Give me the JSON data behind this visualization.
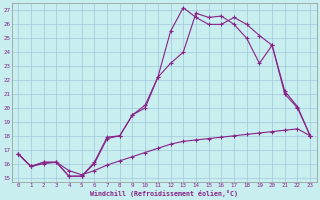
{
  "bg_color": "#c8eef0",
  "grid_color": "#a0c8d8",
  "line_color": "#882288",
  "xlabel": "Windchill (Refroidissement éolien,°C)",
  "xmin": -0.5,
  "xmax": 23.5,
  "ymin": 14.7,
  "ymax": 27.5,
  "line1": {
    "x": [
      0,
      1,
      2,
      3,
      4,
      5,
      6,
      7,
      8,
      9,
      10,
      11,
      12,
      13,
      14,
      15,
      16,
      17,
      18,
      19,
      20,
      21,
      22,
      23
    ],
    "y": [
      16.7,
      15.8,
      16.1,
      16.1,
      15.1,
      15.1,
      16.1,
      17.9,
      18.0,
      19.5,
      20.0,
      22.2,
      25.5,
      27.2,
      26.5,
      26.0,
      26.0,
      26.5,
      26.0,
      25.2,
      24.5,
      21.0,
      20.0,
      18.0
    ]
  },
  "line2": {
    "x": [
      0,
      1,
      2,
      3,
      4,
      5,
      6,
      7,
      8,
      9,
      10,
      11,
      12,
      13,
      14,
      15,
      16,
      17,
      18,
      19,
      20,
      21,
      22,
      23
    ],
    "y": [
      16.7,
      15.8,
      16.1,
      16.1,
      15.1,
      15.1,
      16.0,
      17.8,
      18.0,
      19.5,
      20.2,
      22.2,
      23.2,
      24.0,
      26.8,
      26.5,
      26.6,
      26.0,
      25.0,
      23.2,
      24.5,
      21.2,
      20.1,
      18.0
    ]
  },
  "line3": {
    "x": [
      0,
      1,
      2,
      3,
      4,
      5,
      6,
      7,
      8,
      9,
      10,
      11,
      12,
      13,
      14,
      15,
      16,
      17,
      18,
      19,
      20,
      21,
      22,
      23
    ],
    "y": [
      16.7,
      15.8,
      16.0,
      16.1,
      15.5,
      15.2,
      15.5,
      15.9,
      16.2,
      16.5,
      16.8,
      17.1,
      17.4,
      17.6,
      17.7,
      17.8,
      17.9,
      18.0,
      18.1,
      18.2,
      18.3,
      18.4,
      18.5,
      18.0
    ]
  },
  "yticks": [
    15,
    16,
    17,
    18,
    19,
    20,
    21,
    22,
    23,
    24,
    25,
    26,
    27
  ],
  "xticks": [
    0,
    1,
    2,
    3,
    4,
    5,
    6,
    7,
    8,
    9,
    10,
    11,
    12,
    13,
    14,
    15,
    16,
    17,
    18,
    19,
    20,
    21,
    22,
    23
  ]
}
